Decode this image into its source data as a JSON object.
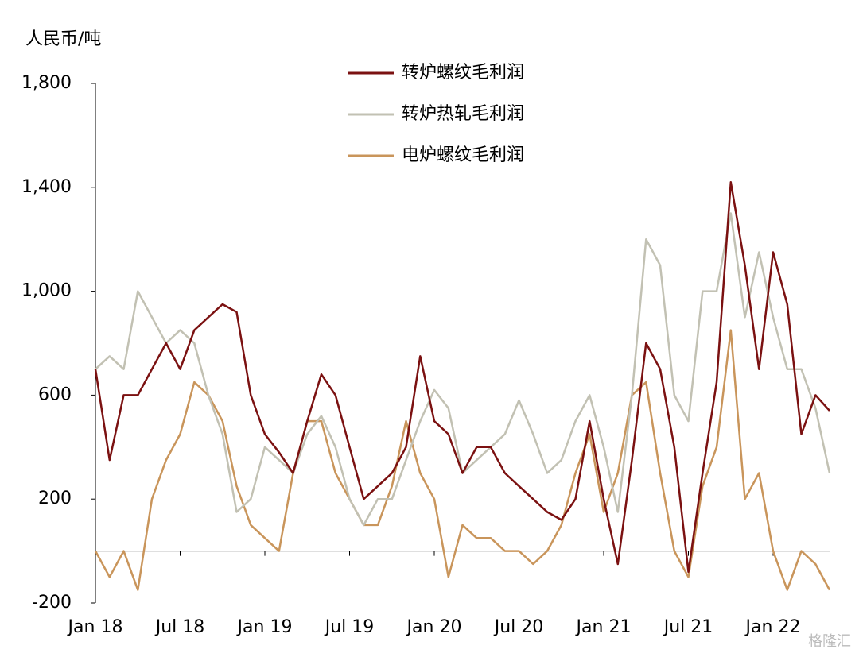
{
  "chart_data": {
    "type": "line",
    "y_label": "人民币/吨",
    "watermark": "格隆汇",
    "categories": [
      "Jan 18",
      null,
      null,
      null,
      null,
      null,
      "Jul 18",
      null,
      null,
      null,
      null,
      null,
      "Jan 19",
      null,
      null,
      null,
      null,
      null,
      "Jul 19",
      null,
      null,
      null,
      null,
      null,
      "Jan 20",
      null,
      null,
      null,
      null,
      null,
      "Jul 20",
      null,
      null,
      null,
      null,
      null,
      "Jan 21",
      null,
      null,
      null,
      null,
      null,
      "Jul 21",
      null,
      null,
      null,
      null,
      null,
      "Jan 22",
      null,
      null,
      null,
      null
    ],
    "series": [
      {
        "name": "转炉螺纹毛利润",
        "color": "#7b1111",
        "values": [
          700,
          350,
          600,
          600,
          700,
          800,
          700,
          850,
          900,
          950,
          920,
          600,
          450,
          380,
          300,
          500,
          680,
          600,
          400,
          200,
          250,
          300,
          400,
          750,
          500,
          450,
          300,
          400,
          400,
          300,
          250,
          200,
          150,
          120,
          200,
          500,
          200,
          -50,
          350,
          800,
          700,
          400,
          -80,
          300,
          650,
          1420,
          1100,
          700,
          1150,
          950,
          450,
          600,
          540
        ]
      },
      {
        "name": "转炉热轧毛利润",
        "color": "#c2c1b3",
        "values": [
          700,
          750,
          700,
          1000,
          900,
          800,
          850,
          800,
          600,
          450,
          150,
          200,
          400,
          350,
          300,
          450,
          520,
          400,
          200,
          100,
          200,
          200,
          350,
          500,
          620,
          550,
          300,
          350,
          400,
          450,
          580,
          450,
          300,
          350,
          500,
          600,
          400,
          150,
          600,
          1200,
          1100,
          600,
          500,
          1000,
          1000,
          1300,
          900,
          1150,
          900,
          700,
          700,
          550,
          300
        ]
      },
      {
        "name": "电炉螺纹毛利润",
        "color": "#c9955b",
        "values": [
          0,
          -100,
          0,
          -150,
          200,
          350,
          450,
          650,
          600,
          500,
          250,
          100,
          50,
          0,
          300,
          500,
          500,
          300,
          200,
          100,
          100,
          250,
          500,
          300,
          200,
          -100,
          100,
          50,
          50,
          0,
          0,
          -50,
          0,
          100,
          300,
          450,
          150,
          300,
          600,
          650,
          300,
          0,
          -100,
          250,
          400,
          850,
          200,
          300,
          0,
          -150,
          0,
          -50,
          -150
        ]
      }
    ],
    "ylim": [
      -200,
      1800
    ],
    "yticks": [
      {
        "value": -200,
        "label": "-200"
      },
      200,
      600,
      {
        "value": 1000,
        "label": "1,000"
      },
      {
        "value": 1400,
        "label": "1,400"
      },
      {
        "value": 1800,
        "label": "1,800"
      }
    ]
  }
}
